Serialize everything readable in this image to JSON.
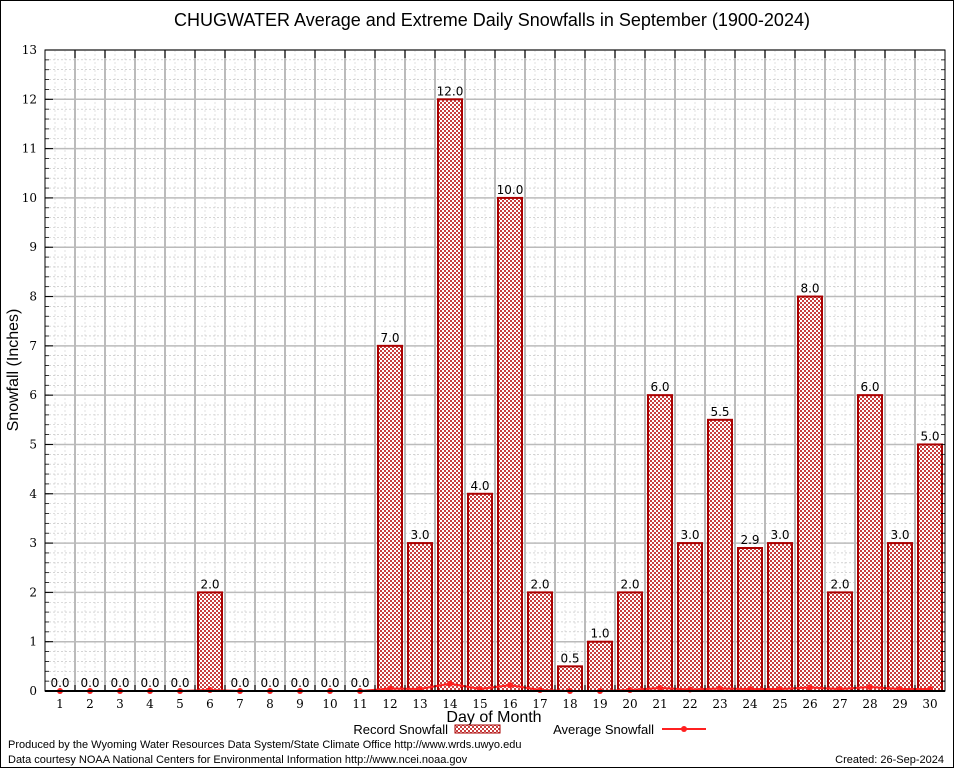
{
  "chart_data": {
    "type": "bar",
    "title": "CHUGWATER Average and Extreme Daily Snowfalls in September (1900-2024)",
    "xlabel": "Day of Month",
    "ylabel": "Snowfall (Inches)",
    "ylim": [
      0,
      13
    ],
    "yticks": [
      "0",
      "1",
      "2",
      "3",
      "4",
      "5",
      "6",
      "7",
      "8",
      "9",
      "10",
      "11",
      "12",
      "13"
    ],
    "categories": [
      "1",
      "2",
      "3",
      "4",
      "5",
      "6",
      "7",
      "8",
      "9",
      "10",
      "11",
      "12",
      "13",
      "14",
      "15",
      "16",
      "17",
      "18",
      "19",
      "20",
      "21",
      "22",
      "23",
      "24",
      "25",
      "26",
      "27",
      "28",
      "29",
      "30"
    ],
    "grid": true,
    "legend_position": "bottom",
    "series": [
      {
        "name": "Record Snowfall",
        "type": "bar",
        "color": "#aa0000",
        "values": [
          0,
          0,
          0,
          0,
          0,
          2,
          0,
          0,
          0,
          0,
          0,
          7,
          3,
          12,
          4,
          10,
          2,
          0.5,
          1,
          2,
          6,
          3,
          5.5,
          2.9,
          3,
          8,
          2,
          6,
          3,
          5
        ],
        "labels": [
          "0.0",
          "0.0",
          "0.0",
          "0.0",
          "0.0",
          "2.0",
          "0.0",
          "0.0",
          "0.0",
          "0.0",
          "0.0",
          "7.0",
          "3.0",
          "12.0",
          "4.0",
          "10.0",
          "2.0",
          "0.5",
          "1.0",
          "2.0",
          "6.0",
          "3.0",
          "5.5",
          "2.9",
          "3.0",
          "8.0",
          "2.0",
          "6.0",
          "3.0",
          "5.0"
        ]
      },
      {
        "name": "Average Snowfall",
        "type": "line",
        "color": "#ff2020",
        "values": [
          0,
          0,
          0,
          0,
          0,
          0.02,
          0,
          0,
          0,
          0,
          0,
          0.05,
          0.04,
          0.15,
          0.04,
          0.12,
          0.02,
          0,
          0,
          0.02,
          0.06,
          0.03,
          0.05,
          0.04,
          0.04,
          0.07,
          0.04,
          0.08,
          0.04,
          0.04
        ]
      }
    ]
  },
  "footer": {
    "credit1": "Produced by the Wyoming Water Resources Data System/State Climate Office http://www.wrds.uwyo.edu",
    "credit2": "Data courtesy NOAA National Centers for Environmental Information http://www.ncei.noaa.gov",
    "created": "Created:  26-Sep-2024"
  }
}
